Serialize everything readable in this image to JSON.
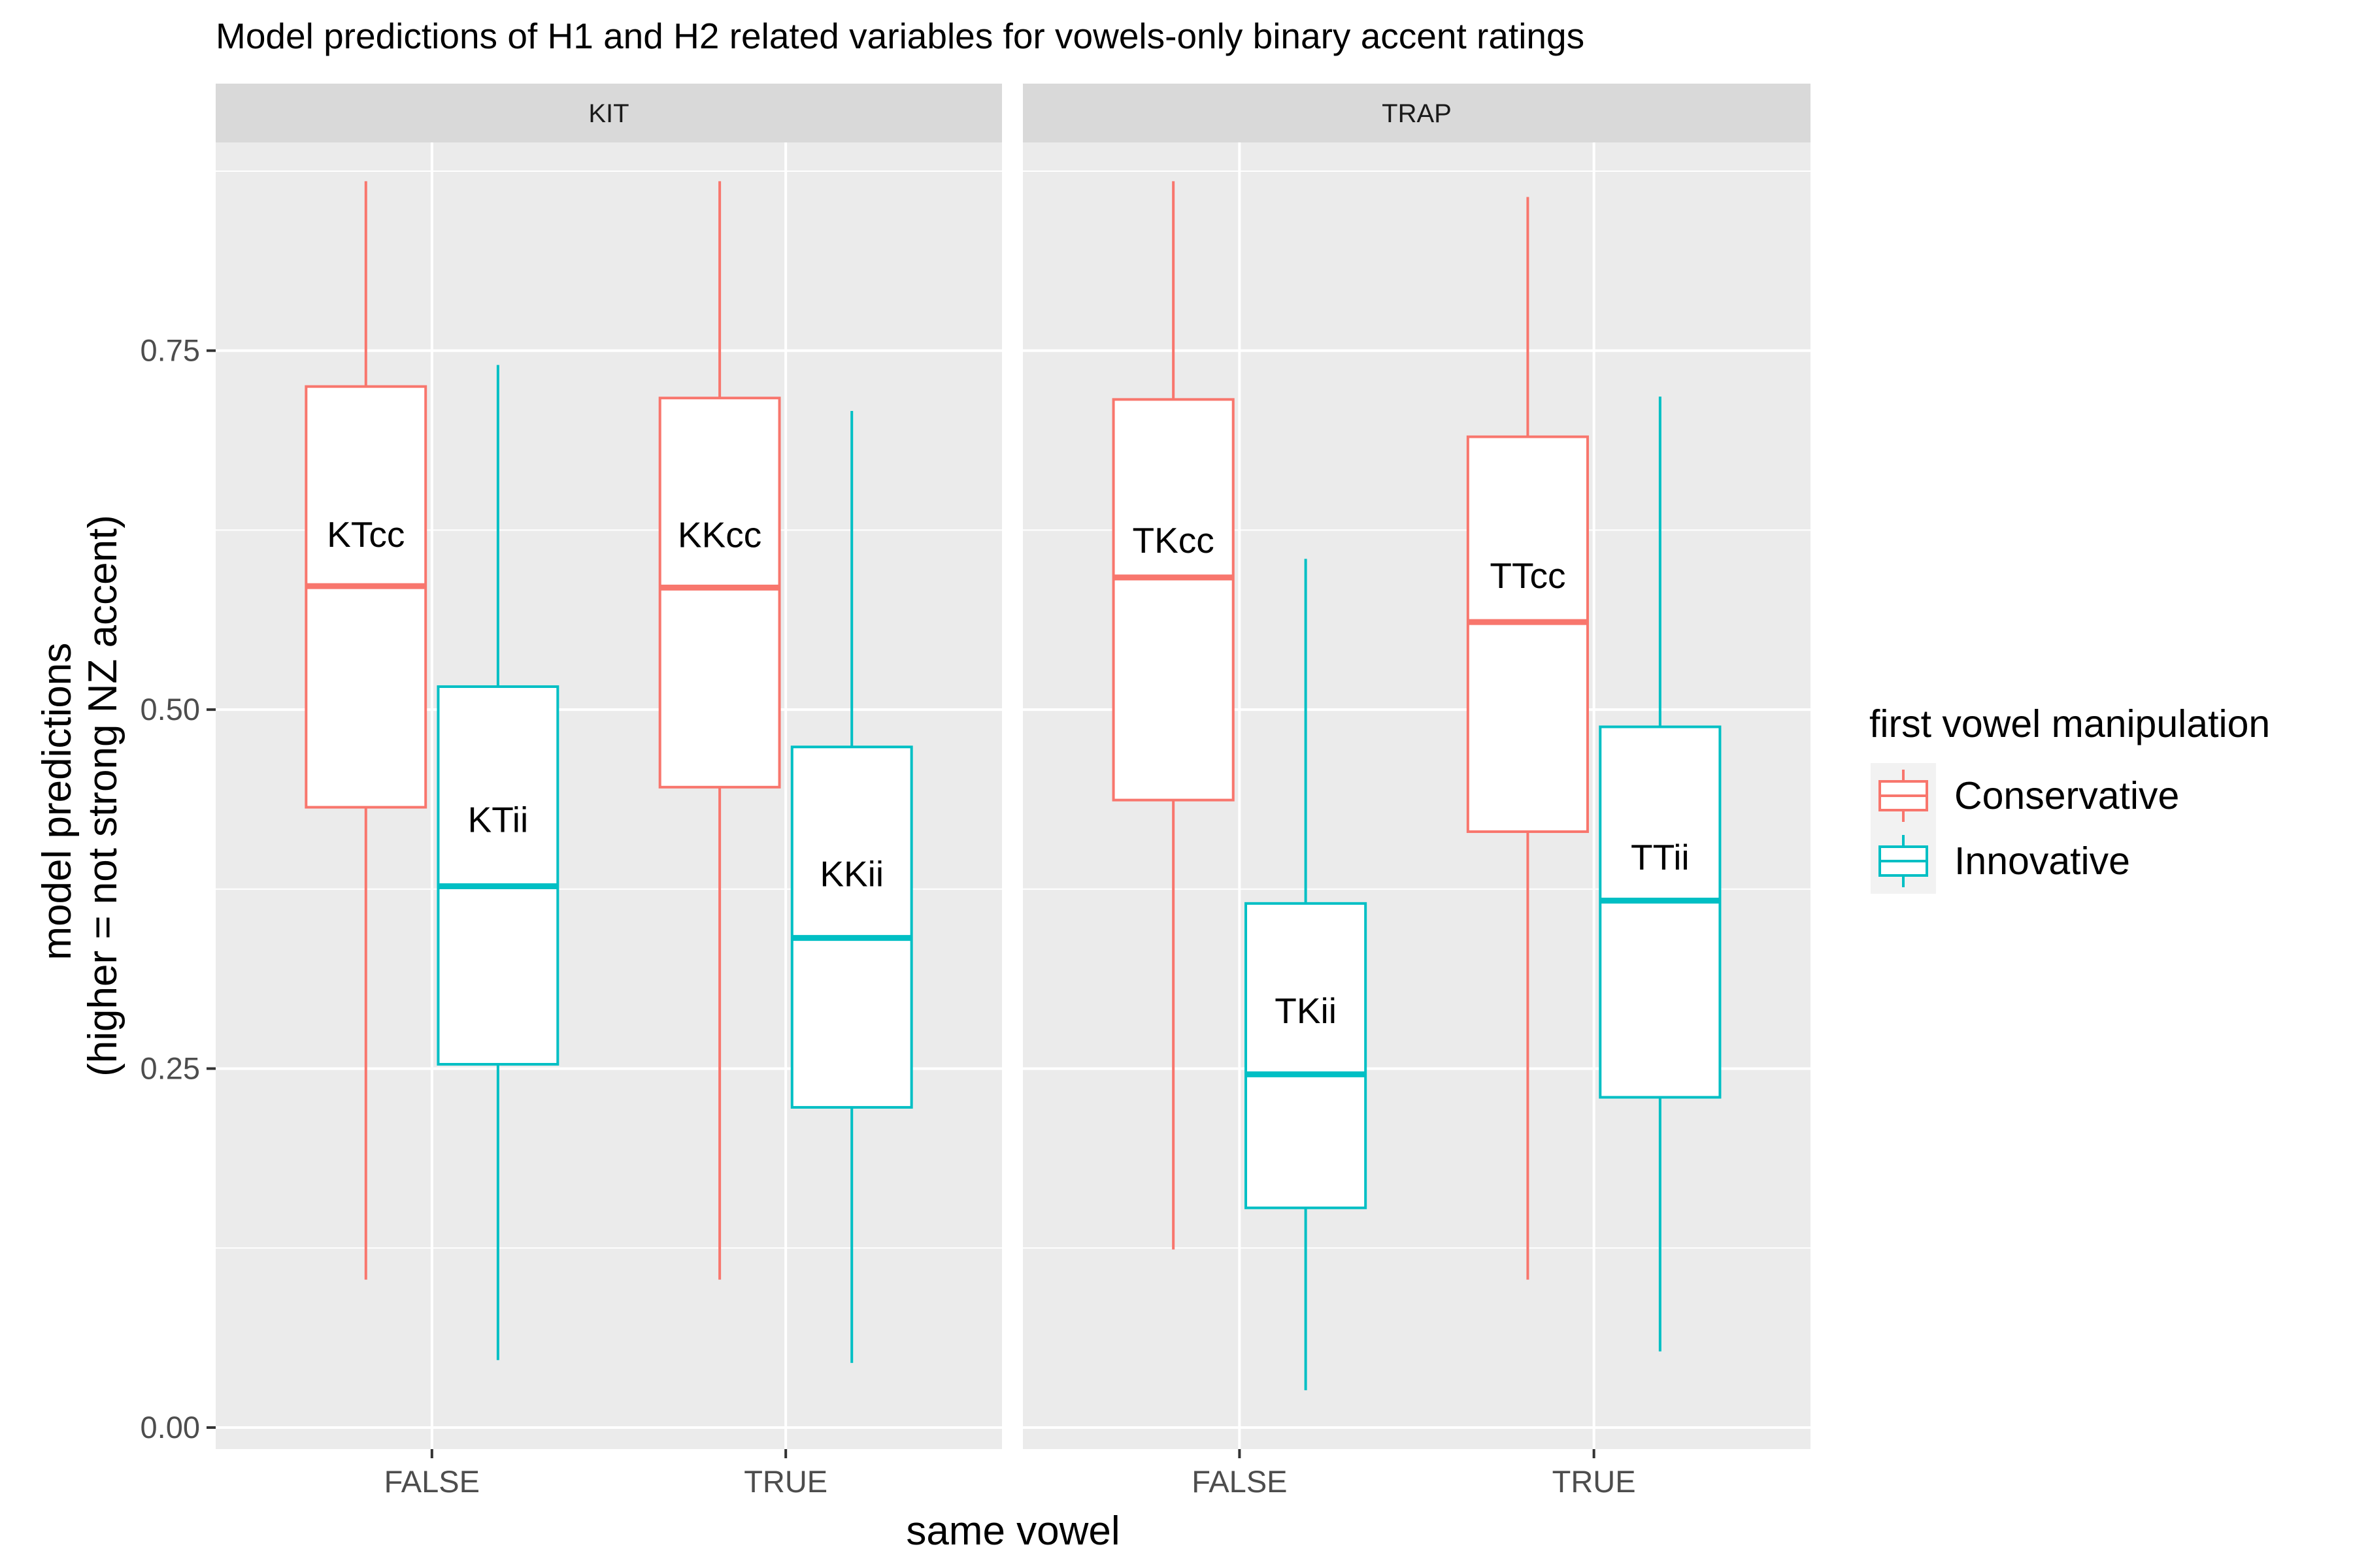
{
  "chart_data": {
    "type": "boxplot",
    "title": "Model predictions of H1 and H2 related variables for vowels-only binary accent ratings",
    "xlabel": "same vowel",
    "ylabel": [
      "model predictions",
      "(higher = not strong NZ accent)"
    ],
    "ylim": [
      -0.015,
      0.895
    ],
    "yticks": [
      {
        "value": 0.0,
        "label": "0.00"
      },
      {
        "value": 0.25,
        "label": "0.25"
      },
      {
        "value": 0.5,
        "label": "0.50"
      },
      {
        "value": 0.75,
        "label": "0.75"
      }
    ],
    "categories": [
      "FALSE",
      "TRUE"
    ],
    "legend": {
      "title": "first vowel manipulation",
      "position": "right",
      "items": [
        {
          "name": "Conservative",
          "color": "#F8766D"
        },
        {
          "name": "Innovative",
          "color": "#00BFC4"
        }
      ]
    },
    "panels": [
      {
        "name": "KIT",
        "boxes": [
          {
            "category": "FALSE",
            "group": "Conservative",
            "label": "KTcc",
            "min": 0.103,
            "q1": 0.432,
            "median": 0.586,
            "q3": 0.725,
            "max": 0.868
          },
          {
            "category": "FALSE",
            "group": "Innovative",
            "label": "KTii",
            "min": 0.047,
            "q1": 0.253,
            "median": 0.377,
            "q3": 0.516,
            "max": 0.74
          },
          {
            "category": "TRUE",
            "group": "Conservative",
            "label": "KKcc",
            "min": 0.103,
            "q1": 0.446,
            "median": 0.585,
            "q3": 0.717,
            "max": 0.868
          },
          {
            "category": "TRUE",
            "group": "Innovative",
            "label": "KKii",
            "min": 0.045,
            "q1": 0.223,
            "median": 0.341,
            "q3": 0.474,
            "max": 0.708
          }
        ]
      },
      {
        "name": "TRAP",
        "boxes": [
          {
            "category": "FALSE",
            "group": "Conservative",
            "label": "TKcc",
            "min": 0.124,
            "q1": 0.437,
            "median": 0.592,
            "q3": 0.716,
            "max": 0.868
          },
          {
            "category": "FALSE",
            "group": "Innovative",
            "label": "TKii",
            "min": 0.026,
            "q1": 0.153,
            "median": 0.246,
            "q3": 0.365,
            "max": 0.605
          },
          {
            "category": "TRUE",
            "group": "Conservative",
            "label": "TTcc",
            "min": 0.103,
            "q1": 0.415,
            "median": 0.561,
            "q3": 0.69,
            "max": 0.857
          },
          {
            "category": "TRUE",
            "group": "Innovative",
            "label": "TTii",
            "min": 0.053,
            "q1": 0.23,
            "median": 0.367,
            "q3": 0.488,
            "max": 0.718
          }
        ]
      }
    ]
  }
}
